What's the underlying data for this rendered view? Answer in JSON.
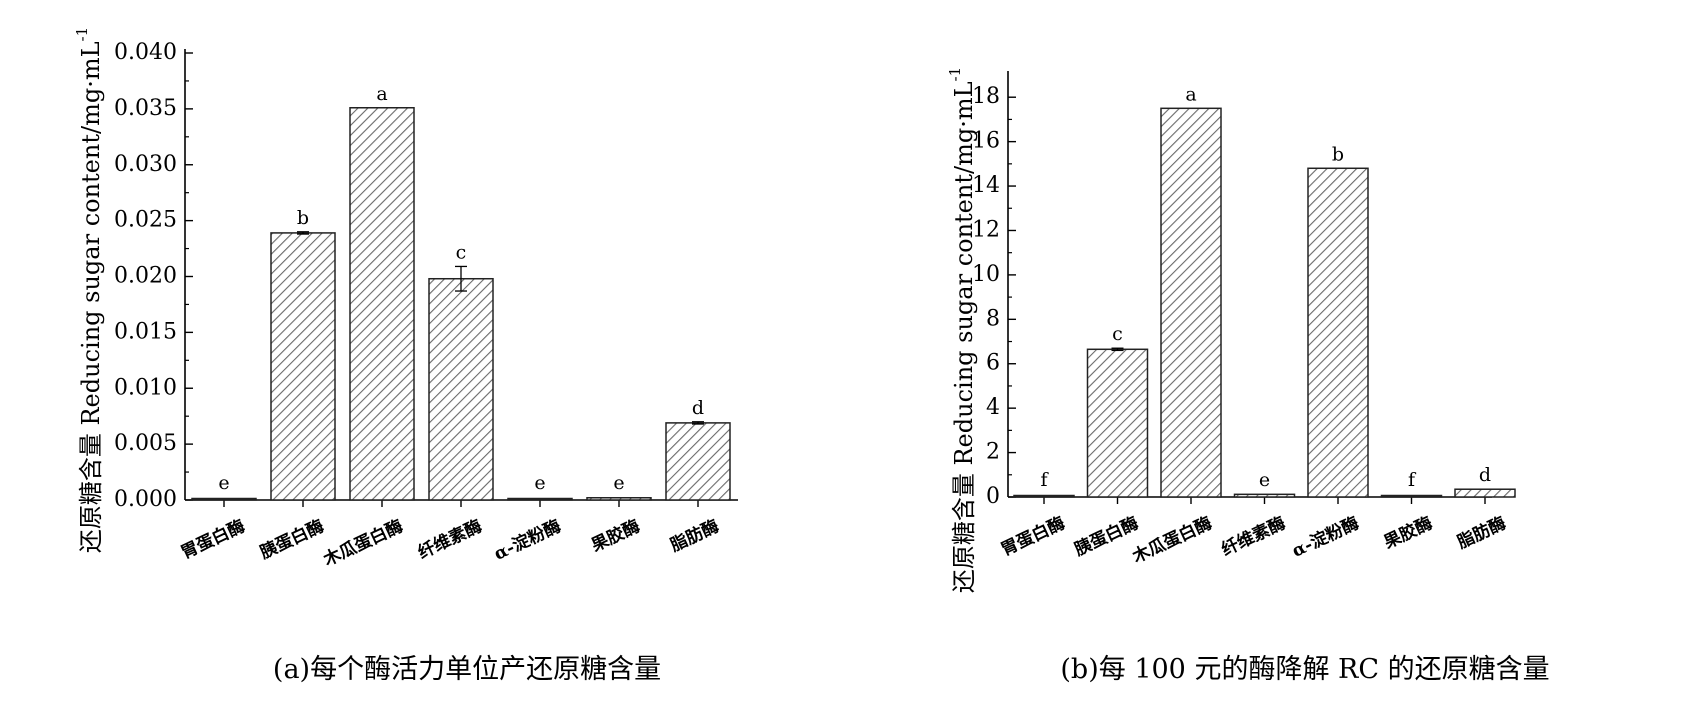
{
  "chart_data": [
    {
      "type": "bar",
      "caption": "(a)每个酶活力单位产还原糖含量",
      "ylabel": "还原糖含量 Reducing sugar content/mg·mL",
      "ylabel_exponent": "-1",
      "ylim": [
        0,
        0.04
      ],
      "yticks": [
        "0.000",
        "0.005",
        "0.010",
        "0.015",
        "0.020",
        "0.025",
        "0.030",
        "0.035",
        "0.040"
      ],
      "categories": [
        "胃蛋白酶",
        "胰蛋白酶",
        "木瓜蛋白酶",
        "纤维素酶",
        "α-淀粉酶",
        "果胶酶",
        "脂肪酶"
      ],
      "values": [
        0.0001,
        0.0239,
        0.0351,
        0.0198,
        0.0001,
        0.0002,
        0.0069
      ],
      "errors": [
        0,
        0.0001,
        0,
        0.0011,
        0,
        0,
        0.0001
      ],
      "labels": [
        "e",
        "b",
        "a",
        "c",
        "e",
        "e",
        "d"
      ],
      "grid": false,
      "pattern": "diagonal-hatch"
    },
    {
      "type": "bar",
      "caption": "(b)每 100 元的酶降解 RC 的还原糖含量",
      "ylabel": "还原糖含量 Reducing sugar content/mg·mL",
      "ylabel_exponent": "-1",
      "ylim": [
        0,
        19
      ],
      "yticks": [
        "0",
        "2",
        "4",
        "6",
        "8",
        "10",
        "12",
        "14",
        "16",
        "18"
      ],
      "categories": [
        "胃蛋白酶",
        "胰蛋白酶",
        "木瓜蛋白酶",
        "纤维素酶",
        "α-淀粉酶",
        "果胶酶",
        "脂肪酶"
      ],
      "values": [
        0.05,
        6.65,
        17.5,
        0.12,
        14.8,
        0.03,
        0.35
      ],
      "errors": [
        0,
        0.05,
        0,
        0,
        0,
        0,
        0
      ],
      "labels": [
        "f",
        "c",
        "a",
        "e",
        "b",
        "f",
        "d"
      ],
      "grid": false,
      "pattern": "diagonal-hatch"
    }
  ]
}
